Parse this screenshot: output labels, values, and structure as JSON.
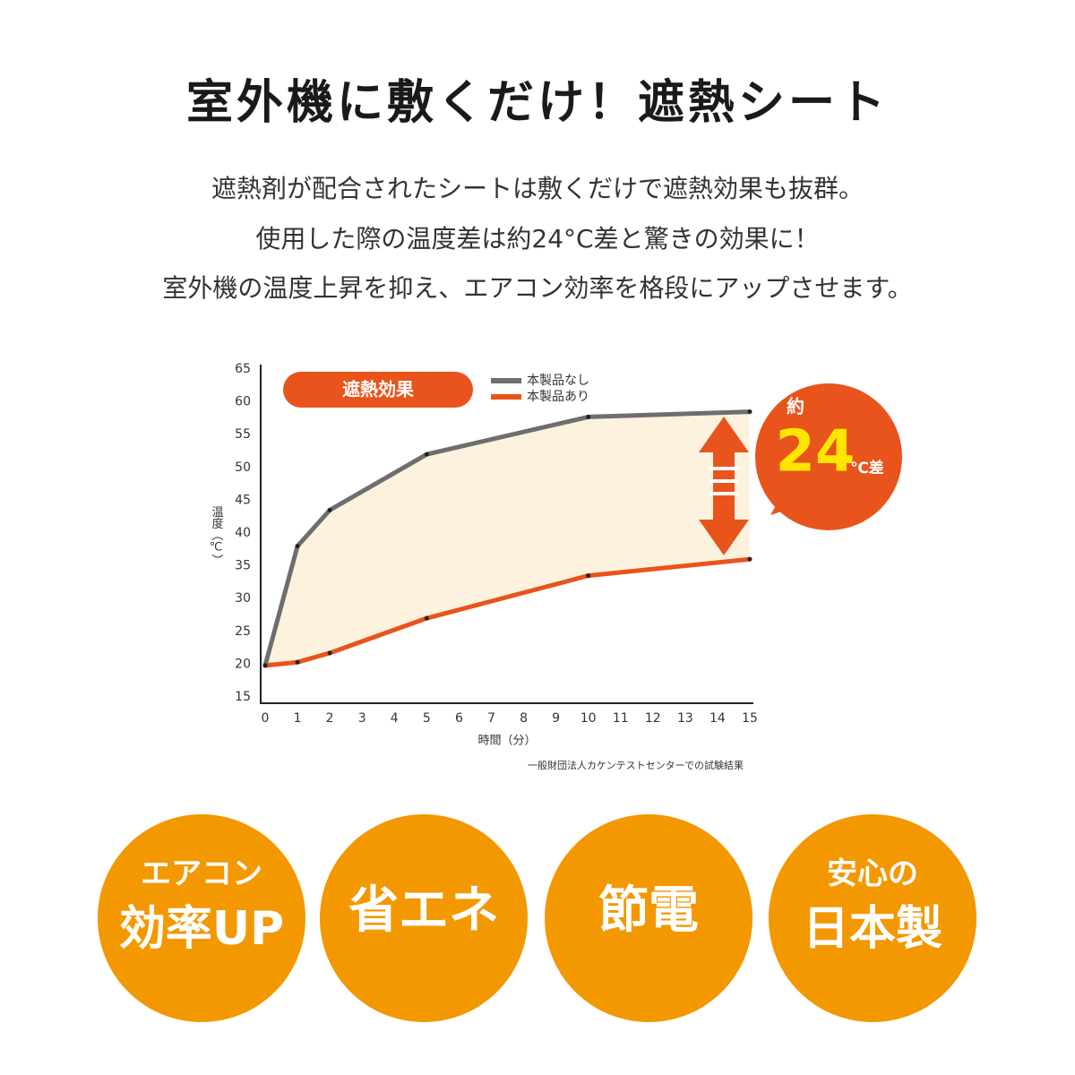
{
  "header": {
    "title": "室外機に敷くだけ！遮熱シート",
    "description": [
      "遮熱剤が配合されたシートは敷くだけで遮熱効果も抜群。",
      "使用した際の温度差は約24°C差と驚きの効果に！",
      "室外機の温度上昇を抑え、エアコン効率を格段にアップさせます。"
    ]
  },
  "chart_data": {
    "type": "line",
    "x": [
      0,
      1,
      2,
      5,
      10,
      15
    ],
    "xlim": [
      0,
      15
    ],
    "xticks": [
      0,
      1,
      2,
      3,
      4,
      5,
      6,
      7,
      8,
      9,
      10,
      11,
      12,
      13,
      14,
      15
    ],
    "ylim": [
      15,
      65
    ],
    "yticks": [
      15,
      20,
      25,
      30,
      35,
      40,
      45,
      50,
      55,
      60,
      65
    ],
    "x_label": "時間（分）",
    "y_label": "温度（℃）",
    "series": [
      {
        "name": "本製品なし",
        "color": "#6e6e6e",
        "values": [
          19.8,
          38,
          43.5,
          52,
          57.7,
          58.5
        ]
      },
      {
        "name": "本製品あり",
        "color": "#e8541c",
        "values": [
          19.8,
          20.3,
          21.7,
          27,
          33.5,
          36
        ]
      }
    ],
    "label": "遮熱効果",
    "note": "一般財団法人カケンテストセンターでの試験結果",
    "callout": {
      "prefix": "約",
      "value": 24,
      "unit": "℃差"
    }
  },
  "badges": [
    {
      "lines": [
        "エアコン",
        "効率UP"
      ]
    },
    {
      "lines": [
        "省エネ"
      ]
    },
    {
      "lines": [
        "節電"
      ]
    },
    {
      "lines": [
        "安心の",
        "日本製"
      ]
    }
  ]
}
